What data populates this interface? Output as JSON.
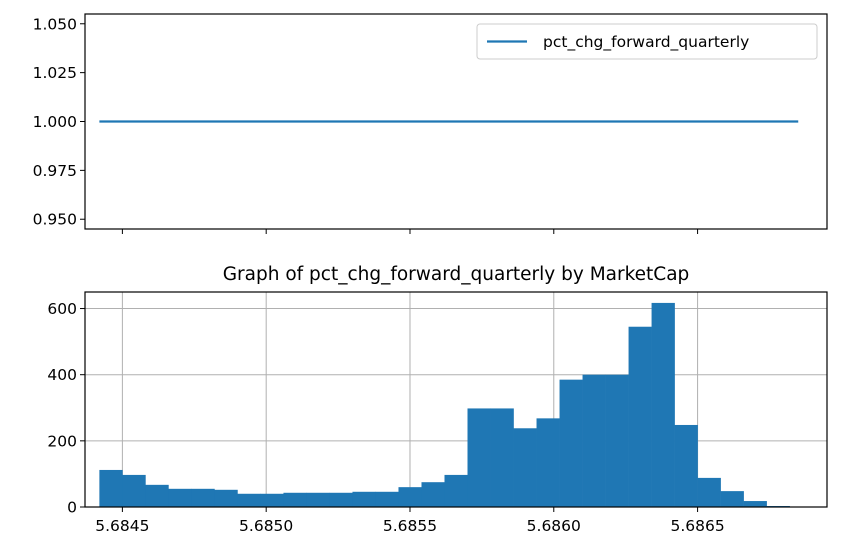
{
  "chart_data": [
    {
      "type": "line",
      "title": "",
      "xlabel": "",
      "ylabel": "",
      "series": [
        {
          "name": "pct_chg_forward_quarterly",
          "x": [
            5.68442,
            5.68685
          ],
          "y": [
            1.0,
            1.0
          ],
          "color": "#1f77b4"
        }
      ],
      "xlim": [
        5.68437,
        5.68695
      ],
      "ylim": [
        0.945,
        1.055
      ],
      "yticks": [
        0.95,
        0.975,
        1.0,
        1.025,
        1.05
      ],
      "ytick_labels": [
        "0.950",
        "0.975",
        "1.000",
        "1.025",
        "1.050"
      ],
      "xticks": [
        5.6845,
        5.685,
        5.6855,
        5.686,
        5.6865
      ],
      "show_xtick_labels": false,
      "grid": false,
      "legend": {
        "position": "upper-right",
        "entries": [
          "pct_chg_forward_quarterly"
        ]
      }
    },
    {
      "type": "bar",
      "subtype": "histogram",
      "title": "Graph of pct_chg_forward_quarterly by MarketCap",
      "xlabel": "",
      "ylabel": "",
      "bin_start": 5.68442,
      "bin_width": 8e-05,
      "values": [
        112,
        97,
        67,
        55,
        55,
        52,
        40,
        40,
        43,
        43,
        43,
        46,
        46,
        60,
        75,
        97,
        298,
        298,
        238,
        268,
        385,
        400,
        400,
        545,
        617,
        248,
        88,
        48,
        18,
        3
      ],
      "xlim": [
        5.68437,
        5.68695
      ],
      "ylim": [
        0,
        650
      ],
      "yticks": [
        0,
        200,
        400,
        600
      ],
      "ytick_labels": [
        "0",
        "200",
        "400",
        "600"
      ],
      "xticks": [
        5.6845,
        5.685,
        5.6855,
        5.686,
        5.6865
      ],
      "xtick_labels": [
        "5.6845",
        "5.6850",
        "5.6855",
        "5.6860",
        "5.6865"
      ],
      "grid": true,
      "color": "#1f77b4"
    }
  ]
}
